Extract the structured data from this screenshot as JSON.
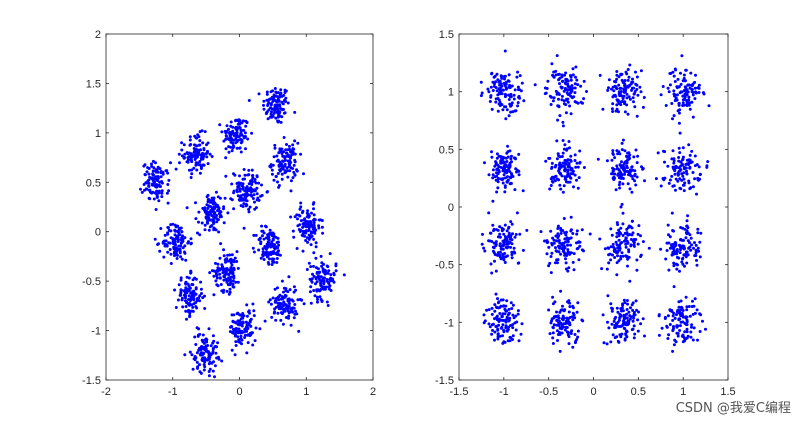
{
  "chart_data": [
    {
      "type": "scatter",
      "title": "",
      "xlabel": "",
      "ylabel": "",
      "xlim": [
        -2,
        2
      ],
      "ylim": [
        -1.5,
        2
      ],
      "xticks": [
        "-2",
        "-1",
        "0",
        "1",
        "2"
      ],
      "yticks": [
        "-1.5",
        "-1",
        "-0.5",
        "0",
        "0.5",
        "1",
        "1.5",
        "2"
      ],
      "grid": false,
      "marker_color": "#0000ff",
      "cluster_spread": 0.1,
      "points_per_cluster": 110,
      "cluster_centers": [
        {
          "x": 0.55,
          "y": 1.28
        },
        {
          "x": -0.05,
          "y": 0.98
        },
        {
          "x": -0.65,
          "y": 0.78
        },
        {
          "x": 0.68,
          "y": 0.7
        },
        {
          "x": -1.25,
          "y": 0.5
        },
        {
          "x": 0.12,
          "y": 0.42
        },
        {
          "x": -0.42,
          "y": 0.18
        },
        {
          "x": 1.02,
          "y": 0.05
        },
        {
          "x": -0.95,
          "y": -0.1
        },
        {
          "x": 0.45,
          "y": -0.15
        },
        {
          "x": -0.18,
          "y": -0.4
        },
        {
          "x": 1.25,
          "y": -0.48
        },
        {
          "x": -0.75,
          "y": -0.65
        },
        {
          "x": 0.68,
          "y": -0.72
        },
        {
          "x": 0.05,
          "y": -0.98
        },
        {
          "x": -0.52,
          "y": -1.22
        }
      ]
    },
    {
      "type": "scatter",
      "title": "",
      "xlabel": "",
      "ylabel": "",
      "xlim": [
        -1.5,
        1.5
      ],
      "ylim": [
        -1.5,
        1.5
      ],
      "xticks": [
        "-1.5",
        "-1",
        "-0.5",
        "0",
        "0.5",
        "1",
        "1.5"
      ],
      "yticks": [
        "-1.5",
        "-1",
        "-0.5",
        "0",
        "0.5",
        "1",
        "1.5"
      ],
      "grid": false,
      "marker_color": "#0000ff",
      "cluster_spread": 0.1,
      "points_per_cluster": 110,
      "cluster_centers": [
        {
          "x": -1,
          "y": 1
        },
        {
          "x": -0.33,
          "y": 1
        },
        {
          "x": 0.33,
          "y": 1
        },
        {
          "x": 1,
          "y": 1
        },
        {
          "x": -1,
          "y": 0.33
        },
        {
          "x": -0.33,
          "y": 0.33
        },
        {
          "x": 0.33,
          "y": 0.33
        },
        {
          "x": 1,
          "y": 0.33
        },
        {
          "x": -1,
          "y": -0.33
        },
        {
          "x": -0.33,
          "y": -0.33
        },
        {
          "x": 0.33,
          "y": -0.33
        },
        {
          "x": 1,
          "y": -0.33
        },
        {
          "x": -1,
          "y": -1
        },
        {
          "x": -0.33,
          "y": -1
        },
        {
          "x": 0.33,
          "y": -1
        },
        {
          "x": 1,
          "y": -1
        }
      ]
    }
  ],
  "watermark": "CSDN @我爱C编程"
}
